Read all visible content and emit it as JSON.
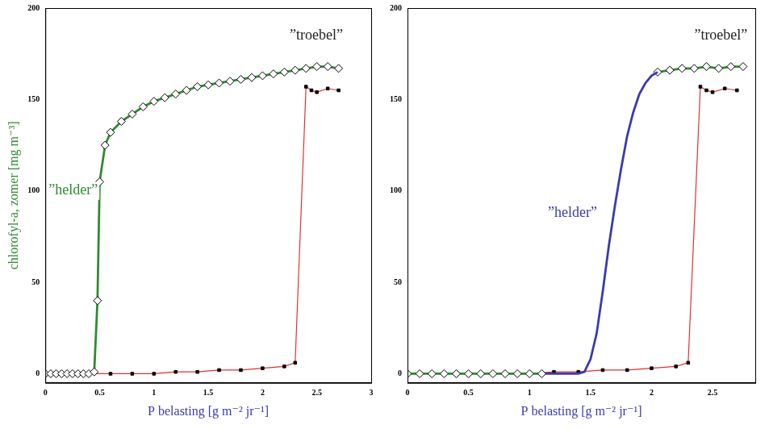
{
  "chart_data": [
    {
      "type": "line",
      "xlabel": "P belasting [g m⁻² jr⁻¹]",
      "ylabel": "chlorofyl-a, zomer [mg m⁻³]",
      "xlim": [
        0,
        3
      ],
      "xticks": [
        0,
        0.5,
        1,
        1.5,
        2,
        2.5,
        3
      ],
      "ylim": [
        -5,
        200
      ],
      "yticks": [
        0,
        50,
        100,
        150,
        200
      ],
      "grid": false,
      "annotations": [
        {
          "text": "”helder”",
          "x": 0.03,
          "y": 100,
          "color": "#2e8b2e"
        },
        {
          "text": "”troebel”",
          "x": 2.25,
          "y": 185,
          "color": "#222222"
        }
      ],
      "series": [
        {
          "color": "#2e8b2e",
          "marker": "diamond",
          "line_style": "solid",
          "x": [
            0,
            0.05,
            0.1,
            0.15,
            0.2,
            0.25,
            0.3,
            0.35,
            0.4,
            0.45,
            0.48,
            0.5,
            0.55,
            0.6,
            0.7,
            0.8,
            0.9,
            1.0,
            1.1,
            1.2,
            1.3,
            1.4,
            1.5,
            1.6,
            1.7,
            1.8,
            1.9,
            2.0,
            2.1,
            2.2,
            2.3,
            2.4,
            2.5,
            2.6,
            2.7
          ],
          "values": [
            0,
            0,
            0,
            0,
            0,
            0,
            0,
            0,
            0,
            1,
            40,
            105,
            125,
            132,
            138,
            142,
            146,
            149,
            151,
            153,
            155,
            157,
            158,
            159,
            160,
            161,
            162,
            163,
            164,
            165,
            166,
            167,
            168,
            168,
            167
          ]
        },
        {
          "color": "#e03030",
          "marker": "square",
          "line_style": "solid",
          "x": [
            0,
            0.2,
            0.4,
            0.6,
            0.8,
            1.0,
            1.2,
            1.4,
            1.6,
            1.8,
            2.0,
            2.2,
            2.3,
            2.4,
            2.45,
            2.5,
            2.6,
            2.7
          ],
          "values": [
            0,
            0,
            0,
            0,
            0,
            0,
            1,
            1,
            2,
            2,
            3,
            4,
            6,
            157,
            155,
            154,
            156,
            155
          ]
        }
      ]
    },
    {
      "type": "line",
      "xlabel": "P belasting [g m⁻² jr⁻¹]",
      "xlim": [
        0,
        2.85
      ],
      "xticks": [
        0,
        0.5,
        1,
        1.5,
        2,
        2.5
      ],
      "ylim": [
        -5,
        200
      ],
      "yticks": [
        0,
        50,
        100,
        150,
        200
      ],
      "grid": false,
      "annotations": [
        {
          "text": "”helder”",
          "x": 1.15,
          "y": 88,
          "color": "#3a3ab0"
        },
        {
          "text": "”troebel”",
          "x": 2.35,
          "y": 185,
          "color": "#222222"
        }
      ],
      "series": [
        {
          "color": "#2e8b2e",
          "marker": "diamond",
          "line_style": "solid",
          "x": [
            0,
            0.1,
            0.2,
            0.3,
            0.4,
            0.5,
            0.6,
            0.7,
            0.8,
            0.9,
            1.0,
            1.1
          ],
          "values": [
            0,
            0,
            0,
            0,
            0,
            0,
            0,
            0,
            0,
            0,
            0,
            0
          ]
        },
        {
          "color": "#3a3ab0",
          "marker": "none",
          "line_style": "solid",
          "x": [
            1.1,
            1.2,
            1.3,
            1.4,
            1.45,
            1.5,
            1.55,
            1.6,
            1.65,
            1.7,
            1.75,
            1.8,
            1.85,
            1.9,
            1.95,
            2.0,
            2.05
          ],
          "values": [
            0,
            0,
            0,
            0,
            1,
            8,
            22,
            45,
            70,
            92,
            112,
            130,
            143,
            153,
            159,
            163,
            165
          ]
        },
        {
          "color": "#2e8b2e",
          "marker": "diamond",
          "line_style": "solid",
          "x": [
            2.05,
            2.15,
            2.25,
            2.35,
            2.45,
            2.55,
            2.65,
            2.75
          ],
          "values": [
            165,
            166,
            167,
            167,
            168,
            167,
            168,
            168
          ]
        },
        {
          "color": "#e03030",
          "marker": "square",
          "line_style": "solid",
          "x": [
            0,
            0.2,
            0.4,
            0.6,
            0.8,
            1.0,
            1.2,
            1.4,
            1.6,
            1.8,
            2.0,
            2.2,
            2.3,
            2.4,
            2.45,
            2.5,
            2.6,
            2.7
          ],
          "values": [
            0,
            0,
            0,
            0,
            0,
            0,
            1,
            1,
            2,
            2,
            3,
            4,
            6,
            157,
            155,
            154,
            156,
            155
          ]
        }
      ]
    }
  ]
}
